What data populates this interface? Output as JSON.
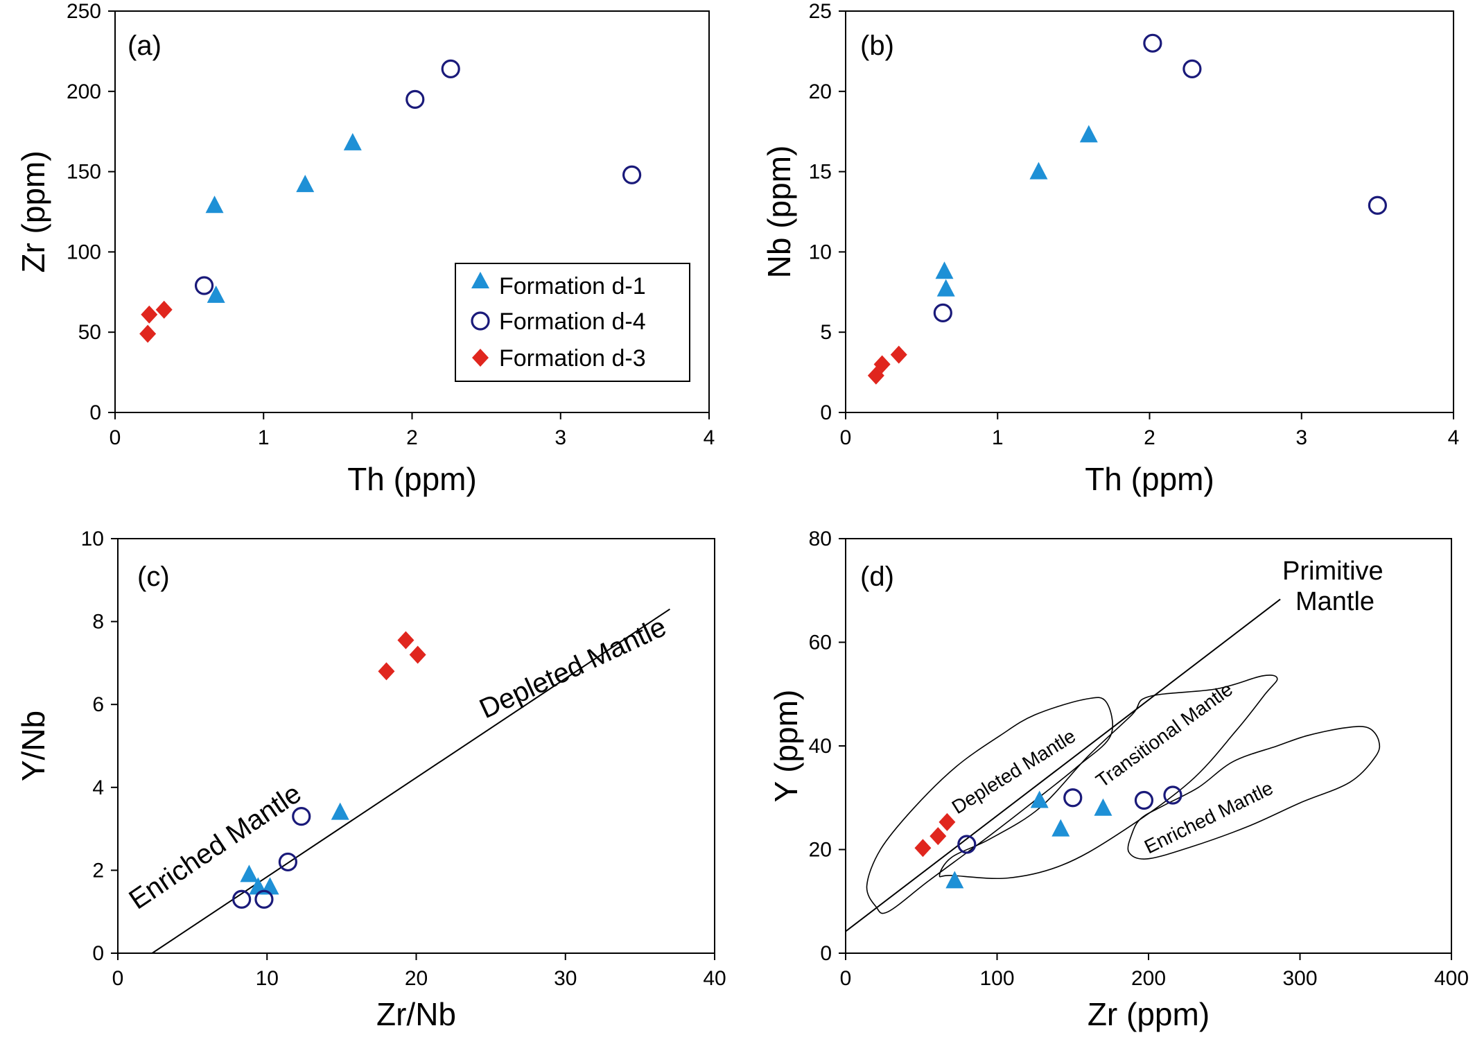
{
  "colors": {
    "formation_d1": "#1e90d6",
    "formation_d4": "#1a1a7a",
    "formation_d3": "#e0261e",
    "axes": "#000000"
  },
  "chart_data": [
    {
      "panel": "(a)",
      "type": "scatter",
      "xlabel": "Th (ppm)",
      "ylabel": "Zr (ppm)",
      "xlim": [
        0,
        4
      ],
      "ylim": [
        0,
        250
      ],
      "xticks": [
        0,
        1,
        2,
        3,
        4
      ],
      "yticks": [
        0,
        50,
        100,
        150,
        200,
        250
      ],
      "legend": {
        "placement": "bottom-right",
        "entries": [
          "Formation d-1",
          "Formation d-4",
          "Formation d-3"
        ]
      },
      "series": [
        {
          "name": "Formation d-1",
          "marker": "triangle",
          "points": [
            [
              0.67,
              129
            ],
            [
              1.28,
              142
            ],
            [
              1.6,
              168
            ],
            [
              0.68,
              73
            ]
          ]
        },
        {
          "name": "Formation d-4",
          "marker": "circle",
          "points": [
            [
              0.6,
              79
            ],
            [
              2.02,
              195
            ],
            [
              2.26,
              214
            ],
            [
              3.48,
              148
            ]
          ]
        },
        {
          "name": "Formation d-3",
          "marker": "diamond",
          "points": [
            [
              0.23,
              61
            ],
            [
              0.33,
              64
            ],
            [
              0.22,
              49
            ]
          ]
        }
      ]
    },
    {
      "panel": "(b)",
      "type": "scatter",
      "xlabel": "Th (ppm)",
      "ylabel": "Nb (ppm)",
      "xlim": [
        0,
        4
      ],
      "ylim": [
        0,
        25
      ],
      "xticks": [
        0,
        1,
        2,
        3,
        4
      ],
      "yticks": [
        0,
        5,
        10,
        15,
        20,
        25
      ],
      "series": [
        {
          "name": "Formation d-1",
          "marker": "triangle",
          "points": [
            [
              0.65,
              8.8
            ],
            [
              0.66,
              7.7
            ],
            [
              1.27,
              15.0
            ],
            [
              1.6,
              17.3
            ]
          ]
        },
        {
          "name": "Formation d-4",
          "marker": "circle",
          "points": [
            [
              0.64,
              6.2
            ],
            [
              2.02,
              23.0
            ],
            [
              2.28,
              21.4
            ],
            [
              3.5,
              12.9
            ]
          ]
        },
        {
          "name": "Formation d-3",
          "marker": "diamond",
          "points": [
            [
              0.2,
              2.3
            ],
            [
              0.24,
              3.0
            ],
            [
              0.35,
              3.6
            ]
          ]
        }
      ]
    },
    {
      "panel": "(c)",
      "type": "scatter",
      "xlabel": "Zr/Nb",
      "ylabel": "Y/Nb",
      "xlim": [
        0,
        40
      ],
      "ylim": [
        0,
        10
      ],
      "xticks": [
        0,
        10,
        20,
        30,
        40
      ],
      "yticks": [
        0,
        2,
        4,
        6,
        8,
        10
      ],
      "lines": [
        {
          "points": [
            [
              2.3,
              0
            ],
            [
              37,
              8.3
            ]
          ]
        }
      ],
      "annotations": [
        "Depleted Mantle",
        "Enriched Mantle"
      ],
      "series": [
        {
          "name": "Formation d-1",
          "marker": "triangle",
          "points": [
            [
              8.8,
              1.9
            ],
            [
              9.4,
              1.6
            ],
            [
              10.2,
              1.6
            ],
            [
              14.9,
              3.4
            ]
          ]
        },
        {
          "name": "Formation d-4",
          "marker": "circle",
          "points": [
            [
              8.3,
              1.3
            ],
            [
              9.8,
              1.3
            ],
            [
              11.4,
              2.2
            ],
            [
              12.3,
              3.3
            ]
          ]
        },
        {
          "name": "Formation d-3",
          "marker": "diamond",
          "points": [
            [
              18.0,
              6.8
            ],
            [
              19.3,
              7.55
            ],
            [
              20.1,
              7.2
            ]
          ]
        }
      ]
    },
    {
      "panel": "(d)",
      "type": "scatter",
      "xlabel": "Zr (ppm)",
      "ylabel": "Y (ppm)",
      "xlim": [
        0,
        400
      ],
      "ylim": [
        0,
        80
      ],
      "xticks": [
        0,
        100,
        200,
        300,
        400
      ],
      "yticks": [
        0,
        20,
        40,
        60,
        80
      ],
      "lines": [
        {
          "points": [
            [
              0,
              4.2
            ],
            [
              287,
              68.3
            ]
          ]
        }
      ],
      "annotations": [
        "Primitive",
        "Mantle",
        "Depleted Mantle",
        "Transitional Mantle",
        "Enriched Mantle"
      ],
      "fields": [
        {
          "points": [
            [
              20,
              9
            ],
            [
              14,
              13
            ],
            [
              23,
              20
            ],
            [
              45,
              28
            ],
            [
              73,
              36
            ],
            [
              102,
              42
            ],
            [
              125,
              46
            ],
            [
              158,
              49
            ],
            [
              172,
              48.5
            ],
            [
              175,
              42
            ],
            [
              153,
              36
            ],
            [
              123,
              29
            ],
            [
              92,
              22
            ],
            [
              55,
              14
            ],
            [
              28,
              8
            ]
          ]
        },
        {
          "points": [
            [
              62,
              15
            ],
            [
              70,
              15
            ],
            [
              107,
              14.5
            ],
            [
              143,
              17
            ],
            [
              180,
              23
            ],
            [
              227,
              33
            ],
            [
              258,
              43
            ],
            [
              277,
              50
            ],
            [
              285,
              53
            ],
            [
              275,
              53.5
            ],
            [
              245,
              51
            ],
            [
              200,
              49.5
            ],
            [
              189,
              46
            ],
            [
              160,
              38
            ],
            [
              128,
              28
            ],
            [
              95,
              22
            ],
            [
              70,
              18.5
            ]
          ]
        },
        {
          "points": [
            [
              187,
              19.5
            ],
            [
              199,
              18.2
            ],
            [
              228,
              20.5
            ],
            [
              266,
              24.5
            ],
            [
              300,
              29
            ],
            [
              333,
              33
            ],
            [
              350,
              38
            ],
            [
              352,
              41
            ],
            [
              345,
              43.5
            ],
            [
              330,
              43.5
            ],
            [
              305,
              42
            ],
            [
              285,
              40
            ],
            [
              256,
              37
            ],
            [
              233,
              32
            ],
            [
              210,
              28.5
            ],
            [
              195,
              26
            ],
            [
              189,
              23
            ]
          ]
        }
      ],
      "series": [
        {
          "name": "Formation d-1",
          "marker": "triangle",
          "points": [
            [
              72,
              14
            ],
            [
              128,
              29.5
            ],
            [
              142,
              24
            ],
            [
              170,
              28
            ]
          ]
        },
        {
          "name": "Formation d-4",
          "marker": "circle",
          "points": [
            [
              80,
              21
            ],
            [
              150,
              30
            ],
            [
              197,
              29.5
            ],
            [
              216,
              30.5
            ]
          ]
        },
        {
          "name": "Formation d-3",
          "marker": "diamond",
          "points": [
            [
              51,
              20.3
            ],
            [
              61,
              22.6
            ],
            [
              67,
              25.3
            ]
          ]
        }
      ]
    }
  ]
}
